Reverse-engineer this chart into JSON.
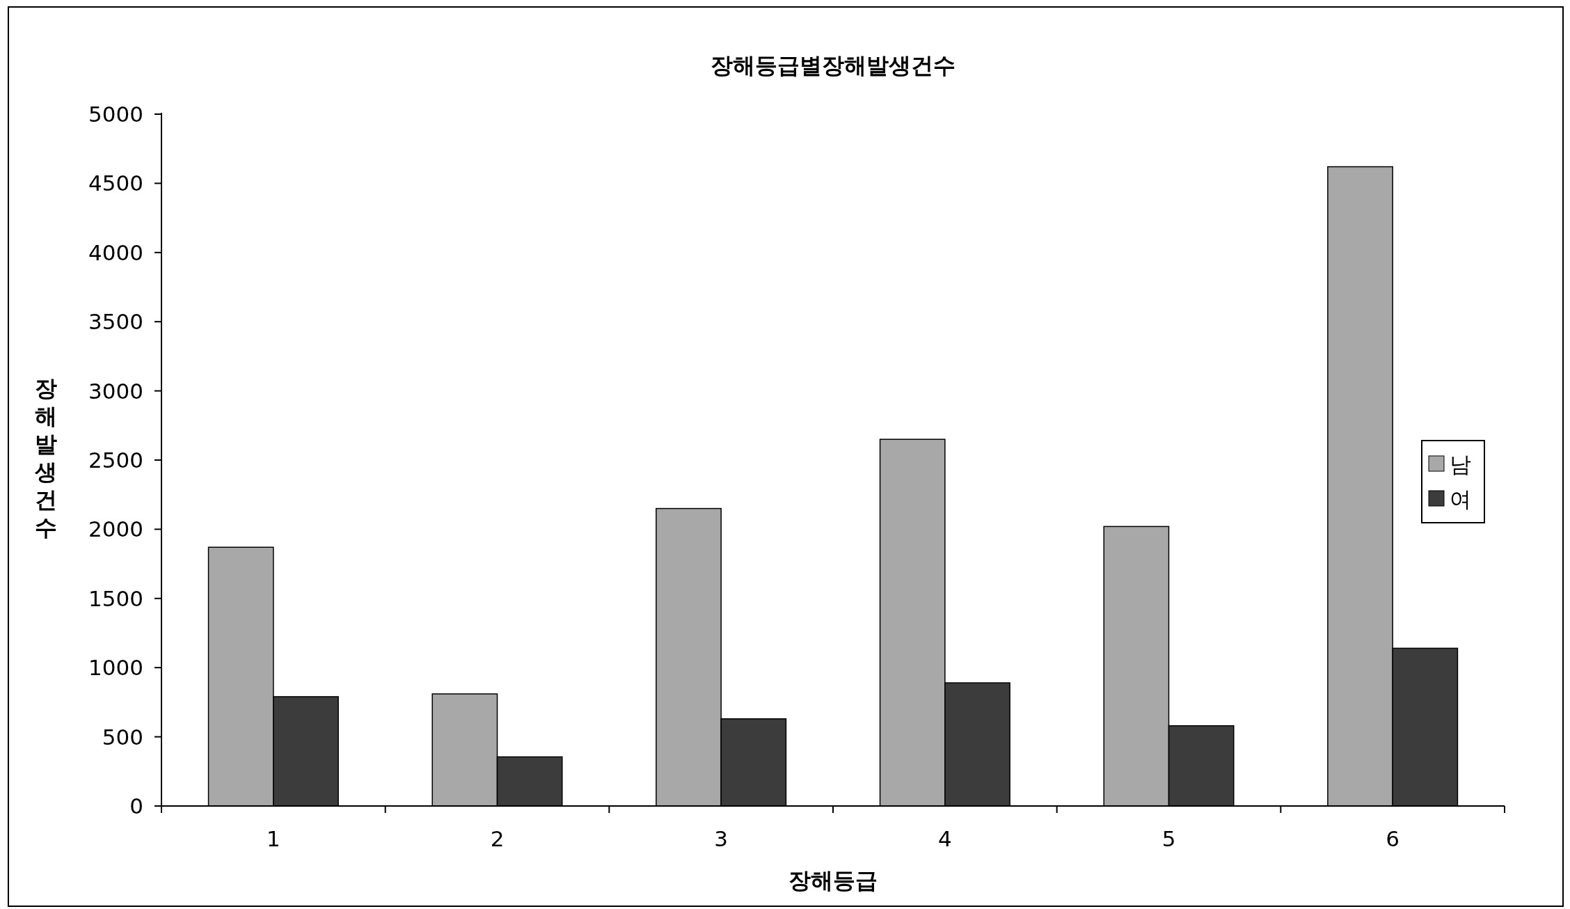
{
  "chart_data": {
    "type": "bar",
    "title": "장해등급별장해발생건수",
    "xlabel": "장해등급",
    "ylabel": "장해발생건수",
    "categories": [
      "1",
      "2",
      "3",
      "4",
      "5",
      "6"
    ],
    "series": [
      {
        "name": "남",
        "color": "#a8a8a8",
        "values": [
          1870,
          810,
          2150,
          2650,
          2020,
          4620
        ]
      },
      {
        "name": "여",
        "color": "#3c3c3c",
        "values": [
          790,
          355,
          630,
          890,
          580,
          1140
        ]
      }
    ],
    "ylim": [
      0,
      5000
    ],
    "yticks": [
      0,
      500,
      1000,
      1500,
      2000,
      2500,
      3000,
      3500,
      4000,
      4500,
      5000
    ],
    "grid": false,
    "legend": "right"
  }
}
